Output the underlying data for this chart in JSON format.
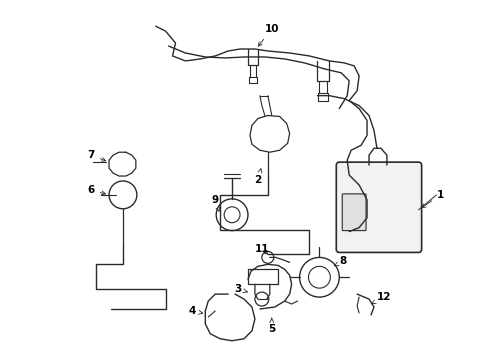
{
  "bg_color": "#ffffff",
  "line_color": "#2a2a2a",
  "fig_width": 4.9,
  "fig_height": 3.6,
  "dpi": 100,
  "label_color": "#000000",
  "label_fontsize": 7.5,
  "label_fontweight": "bold",
  "arrow_lw": 0.6,
  "parts_lw": 0.9
}
